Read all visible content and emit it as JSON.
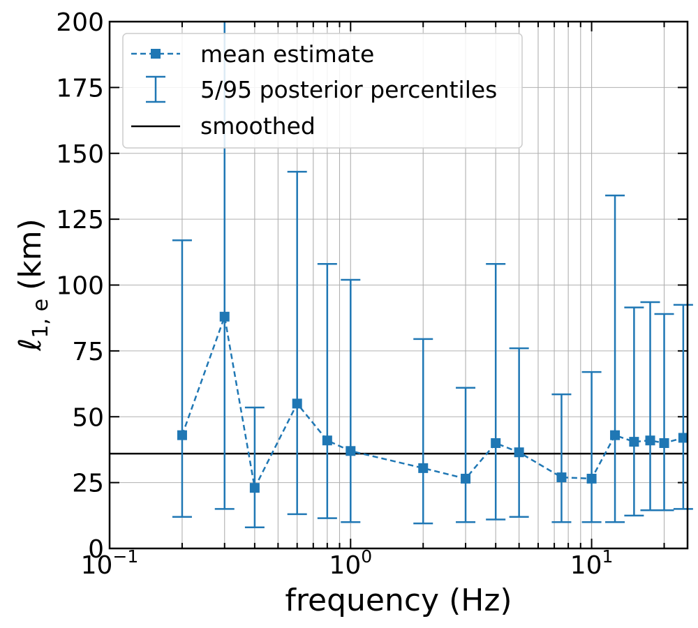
{
  "chart_data": {
    "type": "line",
    "xscale": "log",
    "xlim": [
      0.1,
      25
    ],
    "ylim": [
      0,
      200
    ],
    "grid": true,
    "xlabel": "frequency (Hz)",
    "ylabel_main": "ℓ",
    "ylabel_sub": "1, e",
    "ylabel_unit": "(km)",
    "x_tick_labels": [
      {
        "value": 0.1,
        "base": "10",
        "exp": "−1"
      },
      {
        "value": 1,
        "base": "10",
        "exp": "0"
      },
      {
        "value": 10,
        "base": "10",
        "exp": "1"
      }
    ],
    "y_ticks": [
      0,
      25,
      50,
      75,
      100,
      125,
      150,
      175,
      200
    ],
    "y_tick_labels": [
      "0",
      "25",
      "50",
      "75",
      "100",
      "125",
      "150",
      "175",
      "200"
    ],
    "legend": {
      "position": "upper-left",
      "entries": [
        "mean estimate",
        "5/95 posterior percentiles",
        "smoothed"
      ]
    },
    "series": [
      {
        "name": "mean estimate",
        "style": "dashed-square-markers",
        "color": "#1f77b4",
        "x": [
          0.2,
          0.3,
          0.4,
          0.6,
          0.8,
          1.0,
          2.0,
          3.0,
          4.0,
          5.0,
          7.5,
          10.0,
          12.5,
          15.0,
          17.5,
          20.0,
          24.0
        ],
        "y": [
          43,
          88,
          23,
          55,
          41,
          37,
          30.5,
          26.5,
          40,
          36.5,
          27,
          26.5,
          43,
          40.5,
          41,
          40,
          42
        ],
        "lower": [
          12,
          15,
          8,
          13,
          11.5,
          10,
          9.5,
          10,
          11,
          12,
          10,
          10,
          10,
          12.5,
          14.5,
          14.5,
          15
        ],
        "upper": [
          117,
          200,
          53.5,
          143,
          108,
          102,
          79.5,
          61,
          108,
          76,
          58.5,
          67,
          134,
          91.5,
          93.5,
          89,
          92.5
        ]
      },
      {
        "name": "smoothed",
        "style": "solid",
        "color": "#000000",
        "y": 36
      }
    ]
  }
}
